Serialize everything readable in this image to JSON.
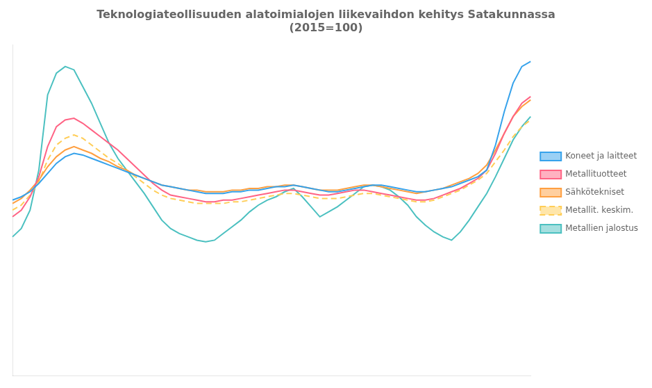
{
  "chart_data": {
    "type": "line",
    "title": "Teknologiateollisuuden alatoimialojen liikevaihdon kehitys Satakunnassa\n(2015=100)",
    "categories": [
      null,
      null,
      null,
      null,
      null,
      null,
      null,
      null,
      null,
      null,
      null,
      null,
      null,
      null,
      null,
      null,
      null,
      null,
      null,
      null,
      null,
      null,
      null,
      null,
      null,
      null,
      null,
      null,
      null,
      null,
      null,
      null,
      null,
      null,
      null,
      null,
      null,
      null,
      null,
      null,
      null,
      null,
      null,
      null,
      null,
      null,
      null,
      null,
      null,
      null,
      null,
      null,
      null,
      null,
      null,
      null,
      null,
      null,
      null,
      null
    ],
    "series": [
      {
        "name": "Koneet ja laitteet",
        "line_style": "solid",
        "values": [
          82,
          84,
          87,
          92,
          98,
          104,
          108,
          110,
          109,
          107,
          105,
          103,
          101,
          99,
          97,
          95,
          93,
          91,
          90,
          89,
          88,
          87,
          86,
          86,
          86,
          87,
          87,
          88,
          88,
          89,
          90,
          90,
          91,
          90,
          89,
          88,
          87,
          87,
          88,
          89,
          90,
          91,
          91,
          90,
          89,
          88,
          87,
          87,
          88,
          89,
          90,
          92,
          94,
          96,
          100,
          115,
          135,
          152,
          162,
          165
        ]
      },
      {
        "name": "Metallituotteet",
        "line_style": "solid",
        "values": [
          72,
          76,
          84,
          96,
          114,
          126,
          130,
          131,
          128,
          124,
          120,
          116,
          112,
          107,
          102,
          97,
          92,
          88,
          85,
          84,
          83,
          82,
          81,
          81,
          82,
          82,
          83,
          84,
          85,
          86,
          87,
          88,
          88,
          87,
          86,
          85,
          85,
          86,
          87,
          88,
          88,
          87,
          86,
          85,
          84,
          83,
          82,
          82,
          83,
          85,
          87,
          89,
          92,
          95,
          100,
          110,
          122,
          132,
          140,
          144
        ]
      },
      {
        "name": "Sähkötekniset",
        "line_style": "solid",
        "values": [
          80,
          83,
          88,
          94,
          102,
          108,
          112,
          114,
          112,
          110,
          107,
          105,
          102,
          100,
          97,
          95,
          93,
          91,
          90,
          89,
          88,
          88,
          87,
          87,
          87,
          88,
          88,
          89,
          89,
          90,
          90,
          91,
          91,
          90,
          89,
          88,
          88,
          88,
          89,
          90,
          91,
          91,
          90,
          89,
          88,
          87,
          86,
          87,
          88,
          89,
          91,
          93,
          95,
          98,
          103,
          112,
          122,
          132,
          138,
          142
        ]
      },
      {
        "name": "Metallit. keskim.",
        "line_style": "dashed",
        "values": [
          76,
          79,
          85,
          93,
          106,
          115,
          119,
          121,
          119,
          115,
          111,
          107,
          104,
          100,
          96,
          92,
          88,
          85,
          83,
          82,
          81,
          80,
          80,
          80,
          80,
          81,
          81,
          82,
          83,
          84,
          85,
          86,
          86,
          85,
          84,
          83,
          83,
          83,
          84,
          85,
          86,
          86,
          85,
          84,
          83,
          82,
          81,
          81,
          82,
          84,
          86,
          88,
          91,
          94,
          98,
          105,
          112,
          120,
          126,
          130
        ]
      },
      {
        "name": "Metallien jalostus",
        "line_style": "solid",
        "values": [
          60,
          65,
          76,
          100,
          145,
          158,
          162,
          160,
          150,
          140,
          128,
          116,
          107,
          100,
          93,
          86,
          78,
          70,
          65,
          62,
          60,
          58,
          57,
          58,
          62,
          66,
          70,
          75,
          79,
          82,
          84,
          87,
          89,
          84,
          78,
          72,
          75,
          78,
          82,
          86,
          90,
          91,
          90,
          88,
          84,
          79,
          72,
          67,
          63,
          60,
          58,
          63,
          70,
          78,
          86,
          96,
          107,
          118,
          126,
          132
        ]
      }
    ],
    "ylim": [
      -23,
      175
    ],
    "grid": false,
    "legend": "right",
    "tick_labels": false
  }
}
